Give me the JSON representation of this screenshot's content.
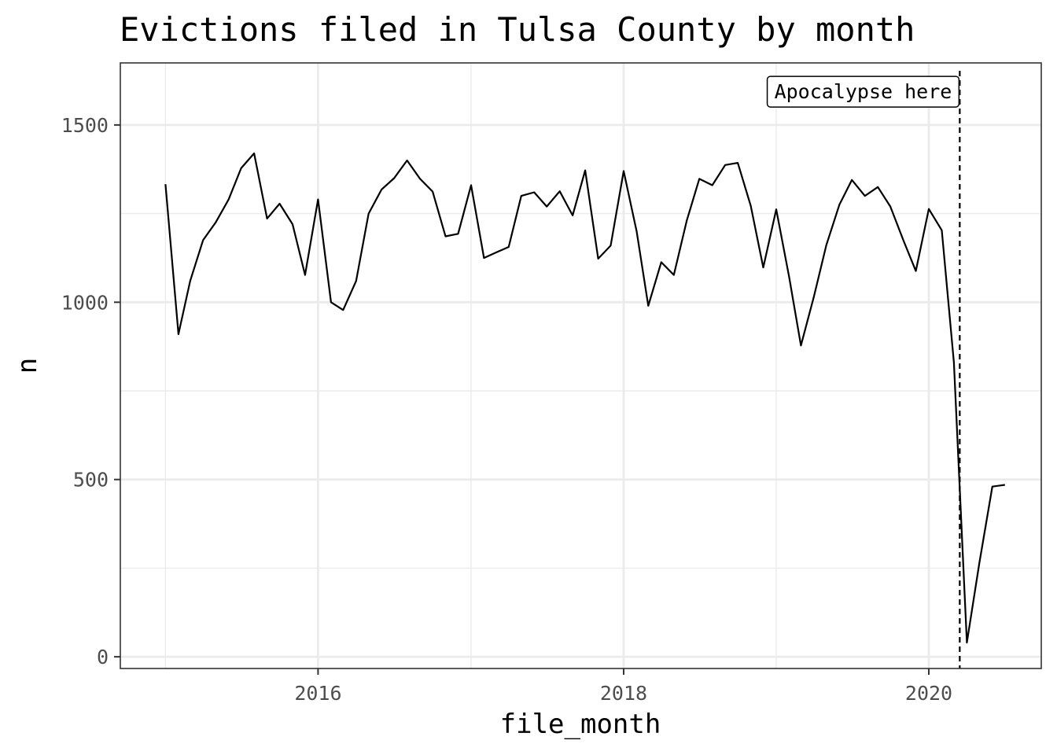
{
  "chart_data": {
    "type": "line",
    "title": "Evictions filed in Tulsa County by month",
    "xlabel": "file_month",
    "ylabel": "n",
    "xlim": [
      "2014-09-15",
      "2020-09-26"
    ],
    "ylim": [
      -33,
      1675
    ],
    "x_ticks": [
      {
        "date": "2016-01-01",
        "label": "2016"
      },
      {
        "date": "2018-01-01",
        "label": "2018"
      },
      {
        "date": "2020-01-01",
        "label": "2020"
      }
    ],
    "x_minor_ticks": [
      "2015-01-01",
      "2017-01-01",
      "2019-01-01"
    ],
    "y_ticks": [
      {
        "value": 0,
        "label": "0"
      },
      {
        "value": 500,
        "label": "500"
      },
      {
        "value": 1000,
        "label": "1000"
      },
      {
        "value": 1500,
        "label": "1500"
      }
    ],
    "y_minor_ticks": [
      250,
      750,
      1250
    ],
    "grid": true,
    "line_color": "#000000",
    "series": [
      {
        "x": [
          "2015-01-01",
          "2015-02-01",
          "2015-03-01",
          "2015-04-01",
          "2015-05-01",
          "2015-06-01",
          "2015-07-01",
          "2015-08-01",
          "2015-09-01",
          "2015-10-01",
          "2015-11-01",
          "2015-12-01",
          "2016-01-01",
          "2016-02-01",
          "2016-03-01",
          "2016-04-01",
          "2016-05-01",
          "2016-06-01",
          "2016-07-01",
          "2016-08-01",
          "2016-09-01",
          "2016-10-01",
          "2016-11-01",
          "2016-12-01",
          "2017-01-01",
          "2017-02-01",
          "2017-03-01",
          "2017-04-01",
          "2017-05-01",
          "2017-06-01",
          "2017-07-01",
          "2017-08-01",
          "2017-09-01",
          "2017-10-01",
          "2017-11-01",
          "2017-12-01",
          "2018-01-01",
          "2018-02-01",
          "2018-03-01",
          "2018-04-01",
          "2018-05-01",
          "2018-06-01",
          "2018-07-01",
          "2018-08-01",
          "2018-09-01",
          "2018-10-01",
          "2018-11-01",
          "2018-12-01",
          "2019-01-01",
          "2019-02-01",
          "2019-03-01",
          "2019-04-01",
          "2019-05-01",
          "2019-06-01",
          "2019-07-01",
          "2019-08-01",
          "2019-09-01",
          "2019-10-01",
          "2019-11-01",
          "2019-12-01",
          "2020-01-01",
          "2020-02-01",
          "2020-03-01",
          "2020-04-01",
          "2020-05-01",
          "2020-06-01",
          "2020-07-01"
        ],
        "values": [
          1333,
          910,
          1060,
          1175,
          1225,
          1290,
          1378,
          1420,
          1236,
          1278,
          1220,
          1077,
          1290,
          1000,
          978,
          1060,
          1250,
          1318,
          1350,
          1400,
          1348,
          1312,
          1186,
          1193,
          1330,
          1125,
          1140,
          1156,
          1300,
          1310,
          1270,
          1313,
          1245,
          1372,
          1123,
          1160,
          1370,
          1200,
          990,
          1113,
          1077,
          1230,
          1348,
          1330,
          1387,
          1393,
          1272,
          1098,
          1262,
          1070,
          878,
          1015,
          1162,
          1275,
          1345,
          1300,
          1325,
          1270,
          1175,
          1088,
          1263,
          1203,
          830,
          40,
          265,
          480,
          485
        ]
      }
    ],
    "annotations": [
      {
        "type": "vline",
        "x": "2020-03-15",
        "style": "dashed"
      },
      {
        "type": "label",
        "text": "Apocalypse here",
        "x": "2020-03-15",
        "y": 1595
      }
    ]
  }
}
